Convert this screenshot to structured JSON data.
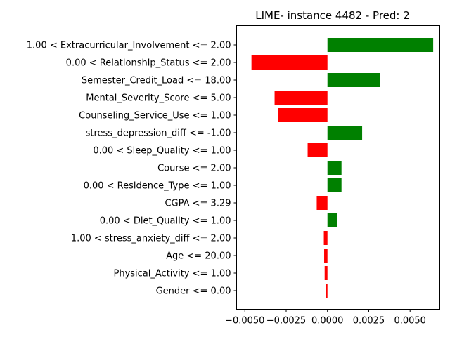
{
  "chart_data": {
    "type": "bar",
    "orientation": "horizontal",
    "title": "LIME- instance 4482 - Pred: 2",
    "xlabel": "",
    "ylabel": "",
    "xlim": [
      -0.0055,
      0.0068
    ],
    "xticks": [
      -0.005,
      -0.0025,
      0.0,
      0.0025,
      0.005
    ],
    "xtick_labels": [
      "−0.0050",
      "−0.0025",
      "0.0000",
      "0.0025",
      "0.0050"
    ],
    "grid": false,
    "legend": "none",
    "categories": [
      "1.00 < Extracurricular_Involvement <= 2.00",
      "0.00 < Relationship_Status <= 2.00",
      "Semester_Credit_Load <= 18.00",
      "Mental_Severity_Score <= 5.00",
      "Counseling_Service_Use <= 1.00",
      "stress_depression_diff <= -1.00",
      "0.00 < Sleep_Quality <= 1.00",
      "Course <= 2.00",
      "0.00 < Residence_Type <= 1.00",
      "CGPA <= 3.29",
      "0.00 < Diet_Quality <= 1.00",
      "1.00 < stress_anxiety_diff <= 2.00",
      "Age <= 20.00",
      "Physical_Activity <= 1.00",
      "Gender <= 0.00"
    ],
    "values": [
      0.0064,
      -0.0046,
      0.0032,
      -0.0032,
      -0.003,
      0.0021,
      -0.0012,
      0.00085,
      0.00085,
      -0.00065,
      0.0006,
      -0.00022,
      -0.0002,
      -0.00017,
      -8e-05
    ],
    "colors": {
      "positive": "#008000",
      "negative": "#ff0000"
    }
  }
}
